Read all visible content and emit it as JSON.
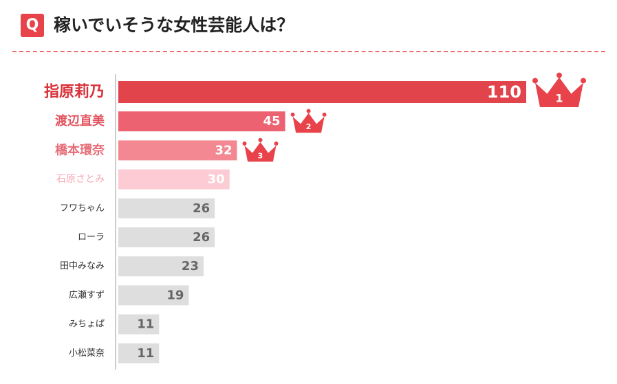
{
  "header": {
    "badge": "Q",
    "question": "稼いでいそうな女性芸能人は？"
  },
  "chart_data": {
    "type": "bar",
    "orientation": "horizontal",
    "title": "稼いでいそうな女性芸能人は？",
    "categories": [
      "指原莉乃",
      "渡辺直美",
      "橋本環奈",
      "石原さとみ",
      "フワちゃん",
      "ローラ",
      "田中みなみ",
      "広瀬すず",
      "みちょぱ",
      "小松菜奈"
    ],
    "values": [
      110,
      45,
      32,
      30,
      26,
      26,
      23,
      19,
      11,
      11
    ],
    "ranks": [
      "1",
      "2",
      "3"
    ],
    "grid": false,
    "colors": {
      "rank1": "#e2444b",
      "rank2": "#ec6270",
      "rank3": "#f38892",
      "rank4": "#fccbd3",
      "others": "#dedede",
      "crown": "#e8424a",
      "axis": "#bbbbbb",
      "label_highlight_1": "#d8323a",
      "label_highlight_2": "#e25560",
      "label_highlight_3": "#e66d78",
      "label_highlight_4": "#f7a6b3",
      "label_default": "#333333",
      "value_on_color": "#ffffff",
      "value_on_gray": "#666666"
    }
  }
}
